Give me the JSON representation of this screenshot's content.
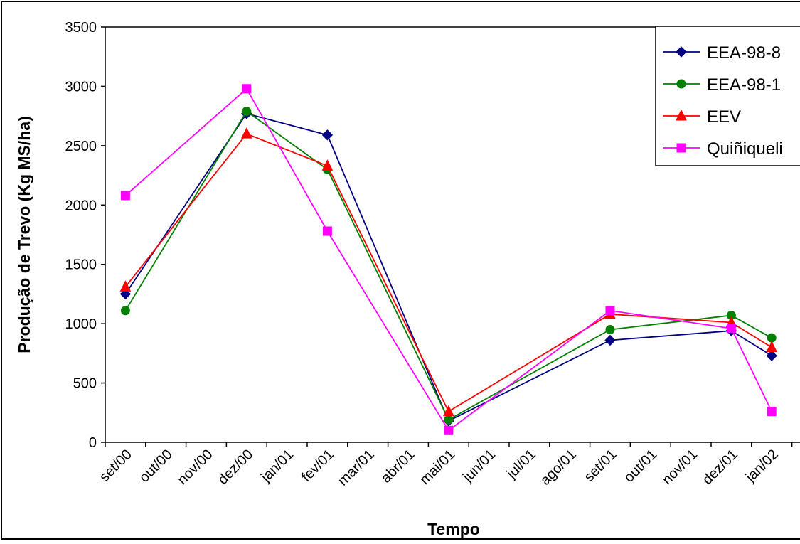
{
  "chart_data": {
    "type": "line",
    "title": "",
    "xlabel": "Tempo",
    "ylabel": "Produção de Trevo (Kg MS/ha)",
    "x_categories": [
      "set/00",
      "out/00",
      "nov/00",
      "dez/00",
      "jan/01",
      "fev/01",
      "mar/01",
      "abr/01",
      "mai/01",
      "jun/01",
      "jul/01",
      "ago/01",
      "set/01",
      "out/01",
      "nov/01",
      "dez/01",
      "jan/02"
    ],
    "ylim": [
      0,
      3500
    ],
    "yticks": [
      "0",
      "500",
      "1000",
      "1500",
      "2000",
      "2500",
      "3000",
      "3500"
    ],
    "grid": "horizontal line at 3500 only",
    "legend_position": "top-right",
    "series": [
      {
        "name": "EEA-98-8",
        "color": "#000080",
        "marker": "diamond",
        "points": [
          {
            "x": "set/00",
            "y": 1250
          },
          {
            "x": "dez/00",
            "y": 2770
          },
          {
            "x": "fev/01",
            "y": 2590
          },
          {
            "x": "mai/01",
            "y": 180
          },
          {
            "x": "set/01",
            "y": 860
          },
          {
            "x": "dez/01",
            "y": 940
          },
          {
            "x": "jan/02",
            "y": 730
          }
        ]
      },
      {
        "name": "EEA-98-1",
        "color": "#008000",
        "marker": "circle",
        "points": [
          {
            "x": "set/00",
            "y": 1110
          },
          {
            "x": "dez/00",
            "y": 2790
          },
          {
            "x": "fev/01",
            "y": 2300
          },
          {
            "x": "mai/01",
            "y": 190
          },
          {
            "x": "set/01",
            "y": 950
          },
          {
            "x": "dez/01",
            "y": 1070
          },
          {
            "x": "jan/02",
            "y": 880
          }
        ]
      },
      {
        "name": "EEV",
        "color": "#ff0000",
        "marker": "triangle",
        "points": [
          {
            "x": "set/00",
            "y": 1310
          },
          {
            "x": "dez/00",
            "y": 2600
          },
          {
            "x": "fev/01",
            "y": 2330
          },
          {
            "x": "mai/01",
            "y": 260
          },
          {
            "x": "set/01",
            "y": 1080
          },
          {
            "x": "dez/01",
            "y": 1010
          },
          {
            "x": "jan/02",
            "y": 800
          }
        ]
      },
      {
        "name": "Quiñiqueli",
        "color": "#ff00ff",
        "marker": "square",
        "points": [
          {
            "x": "set/00",
            "y": 2080
          },
          {
            "x": "dez/00",
            "y": 2980
          },
          {
            "x": "fev/01",
            "y": 1780
          },
          {
            "x": "mai/01",
            "y": 100
          },
          {
            "x": "set/01",
            "y": 1110
          },
          {
            "x": "dez/01",
            "y": 960
          },
          {
            "x": "jan/02",
            "y": 260
          }
        ]
      }
    ]
  }
}
